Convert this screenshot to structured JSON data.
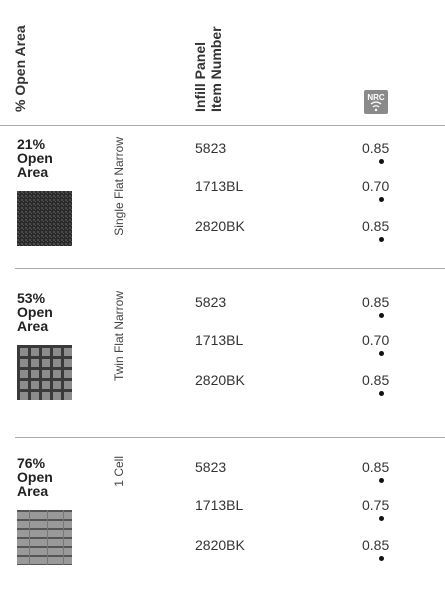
{
  "header": {
    "open_area": "% Open Area",
    "item_number": [
      "Infill Panel",
      "Item Number"
    ],
    "nrc": "NRC"
  },
  "groups": [
    {
      "open_area": [
        "21%",
        "Open",
        "Area"
      ],
      "type": "Single Flat Narrow",
      "rows": [
        {
          "item": "5823",
          "nrc": "0.85"
        },
        {
          "item": "1713BL",
          "nrc": "0.70"
        },
        {
          "item": "2820BK",
          "nrc": "0.85"
        }
      ]
    },
    {
      "open_area": [
        "53%",
        "Open",
        "Area"
      ],
      "type": "Twin Flat Narrow",
      "rows": [
        {
          "item": "5823",
          "nrc": "0.85"
        },
        {
          "item": "1713BL",
          "nrc": "0.70"
        },
        {
          "item": "2820BK",
          "nrc": "0.85"
        }
      ]
    },
    {
      "open_area": [
        "76%",
        "Open",
        "Area"
      ],
      "type": "1 Cell",
      "rows": [
        {
          "item": "5823",
          "nrc": "0.85"
        },
        {
          "item": "1713BL",
          "nrc": "0.75"
        },
        {
          "item": "2820BK",
          "nrc": "0.85"
        }
      ]
    }
  ]
}
